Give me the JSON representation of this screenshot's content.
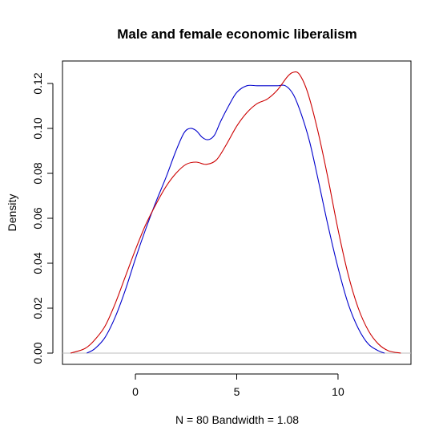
{
  "chart_data": {
    "type": "line",
    "title": "Male and female economic liberalism",
    "xlabel": "N = 80   Bandwidth = 1.08",
    "ylabel": "Density",
    "xlim": [
      -3.6,
      13.6
    ],
    "ylim": [
      -0.005,
      0.13
    ],
    "x_ticks": [
      0,
      5,
      10
    ],
    "x_tick_labels": [
      "0",
      "5",
      "10"
    ],
    "y_ticks": [
      0.0,
      0.02,
      0.04,
      0.06,
      0.08,
      0.1,
      0.12
    ],
    "y_tick_labels": [
      "0.00",
      "0.02",
      "0.04",
      "0.06",
      "0.08",
      "0.10",
      "0.12"
    ],
    "grid": false,
    "baseline": 0,
    "series": [
      {
        "color": "#0000cc",
        "x": [
          -2.4,
          -2.0,
          -1.5,
          -1.0,
          -0.5,
          0.0,
          0.5,
          1.0,
          1.5,
          2.0,
          2.4,
          2.7,
          3.0,
          3.3,
          3.6,
          3.9,
          4.2,
          4.6,
          5.0,
          5.5,
          6.0,
          6.5,
          7.0,
          7.4,
          7.8,
          8.2,
          8.6,
          9.0,
          9.5,
          10.0,
          10.5,
          11.0,
          11.5,
          12.0,
          12.3
        ],
        "values": [
          0.0,
          0.002,
          0.007,
          0.016,
          0.028,
          0.042,
          0.055,
          0.067,
          0.078,
          0.09,
          0.098,
          0.1,
          0.099,
          0.096,
          0.095,
          0.097,
          0.103,
          0.11,
          0.116,
          0.119,
          0.119,
          0.119,
          0.119,
          0.119,
          0.115,
          0.106,
          0.094,
          0.078,
          0.057,
          0.038,
          0.022,
          0.011,
          0.004,
          0.001,
          0.0
        ]
      },
      {
        "color": "#cc0000",
        "x": [
          -3.2,
          -2.5,
          -2.0,
          -1.5,
          -1.0,
          -0.5,
          0.0,
          0.5,
          1.0,
          1.5,
          2.0,
          2.5,
          3.0,
          3.5,
          4.0,
          4.5,
          5.0,
          5.5,
          6.0,
          6.5,
          7.0,
          7.5,
          7.8,
          8.1,
          8.5,
          9.0,
          9.5,
          10.0,
          10.5,
          11.0,
          11.5,
          12.0,
          12.5,
          13.1
        ],
        "values": [
          0.0,
          0.002,
          0.006,
          0.012,
          0.022,
          0.034,
          0.046,
          0.057,
          0.066,
          0.074,
          0.08,
          0.084,
          0.085,
          0.084,
          0.086,
          0.093,
          0.101,
          0.107,
          0.111,
          0.113,
          0.117,
          0.123,
          0.125,
          0.124,
          0.116,
          0.099,
          0.078,
          0.055,
          0.035,
          0.02,
          0.01,
          0.004,
          0.001,
          0.0
        ]
      }
    ]
  }
}
